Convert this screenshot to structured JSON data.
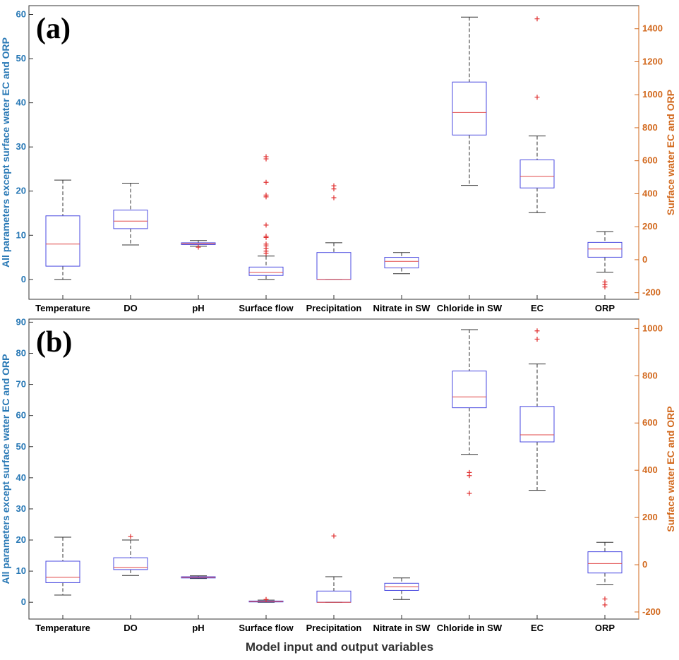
{
  "chart_data": [
    {
      "type": "boxplot",
      "panel_label": "(a)",
      "categories": [
        "Temperature",
        "DO",
        "pH",
        "Surface flow",
        "Precipitation",
        "Nitrate in SW",
        "Chloride in SW",
        "EC",
        "ORP"
      ],
      "left_axis": {
        "label": "All parameters except surface water EC and ORP",
        "ylim": [
          -4.5,
          62
        ],
        "ticks": [
          0,
          10,
          20,
          30,
          40,
          50,
          60
        ]
      },
      "right_axis": {
        "label": "Surface water EC and ORP",
        "ylim": [
          -240,
          1540
        ],
        "ticks": [
          -200,
          0,
          200,
          400,
          600,
          800,
          1000,
          1200,
          1400
        ]
      },
      "boxes": [
        {
          "name": "Temperature",
          "axis": "left",
          "min": 0,
          "q1": 3,
          "median": 8,
          "q3": 14.4,
          "max": 22.5,
          "outliers": []
        },
        {
          "name": "DO",
          "axis": "left",
          "min": 7.8,
          "q1": 11.5,
          "median": 13.2,
          "q3": 15.7,
          "max": 21.8,
          "outliers": []
        },
        {
          "name": "pH",
          "axis": "left",
          "min": 7.5,
          "q1": 7.9,
          "median": 8.1,
          "q3": 8.3,
          "max": 8.8,
          "outliers": [
            7.3
          ]
        },
        {
          "name": "Surface flow",
          "axis": "left",
          "min": 0,
          "q1": 0.9,
          "median": 1.6,
          "q3": 2.8,
          "max": 5.3,
          "outliers": [
            5.9,
            6.4,
            7.0,
            7.6,
            8.0,
            9.5,
            9.8,
            12.3,
            18.7,
            19.1,
            22.0,
            27.3,
            27.8
          ]
        },
        {
          "name": "Precipitation",
          "axis": "left",
          "min": 0,
          "q1": 0,
          "median": 0,
          "q3": 6.1,
          "max": 8.3,
          "outliers": [
            18.5,
            20.5,
            21.2
          ]
        },
        {
          "name": "Nitrate in SW",
          "axis": "left",
          "min": 1.3,
          "q1": 2.6,
          "median": 4.1,
          "q3": 5.0,
          "max": 6.1,
          "outliers": []
        },
        {
          "name": "Chloride in SW",
          "axis": "left",
          "min": 21.3,
          "q1": 32.7,
          "median": 37.8,
          "q3": 44.7,
          "max": 59.4,
          "outliers": []
        },
        {
          "name": "EC",
          "axis": "right",
          "min": 285,
          "q1": 435,
          "median": 505,
          "q3": 605,
          "max": 750,
          "outliers": [
            985,
            1460
          ]
        },
        {
          "name": "ORP",
          "axis": "right",
          "min": -75,
          "q1": 15,
          "median": 65,
          "q3": 105,
          "max": 170,
          "outliers": [
            -135,
            -150,
            -165
          ]
        }
      ]
    },
    {
      "type": "boxplot",
      "panel_label": "(b)",
      "categories": [
        "Temperature",
        "DO",
        "pH",
        "Surface flow",
        "Precipitation",
        "Nitrate in SW",
        "Chloride in SW",
        "EC",
        "ORP"
      ],
      "left_axis": {
        "label": "All parameters except surface water EC and ORP",
        "ylim": [
          -5.4,
          91
        ],
        "ticks": [
          0,
          10,
          20,
          30,
          40,
          50,
          60,
          70,
          80,
          90
        ]
      },
      "right_axis": {
        "label": "Surface water EC and ORP",
        "ylim": [
          -230,
          1040
        ],
        "ticks": [
          -200,
          0,
          200,
          400,
          600,
          800,
          1000
        ]
      },
      "boxes": [
        {
          "name": "Temperature",
          "axis": "left",
          "min": 2.3,
          "q1": 6.3,
          "median": 8.0,
          "q3": 13.2,
          "max": 20.9,
          "outliers": []
        },
        {
          "name": "DO",
          "axis": "left",
          "min": 8.6,
          "q1": 10.5,
          "median": 11.2,
          "q3": 14.3,
          "max": 20.0,
          "outliers": [
            21.1
          ]
        },
        {
          "name": "pH",
          "axis": "left",
          "min": 7.6,
          "q1": 7.8,
          "median": 8.0,
          "q3": 8.2,
          "max": 8.5,
          "outliers": []
        },
        {
          "name": "Surface flow",
          "axis": "left",
          "min": 0,
          "q1": 0.1,
          "median": 0.2,
          "q3": 0.4,
          "max": 0.7,
          "outliers": [
            0.9
          ]
        },
        {
          "name": "Precipitation",
          "axis": "left",
          "min": 0,
          "q1": 0,
          "median": 0,
          "q3": 3.6,
          "max": 8.2,
          "outliers": [
            21.3
          ]
        },
        {
          "name": "Nitrate in SW",
          "axis": "left",
          "min": 0.9,
          "q1": 3.8,
          "median": 5.0,
          "q3": 6.1,
          "max": 7.8,
          "outliers": []
        },
        {
          "name": "Chloride in SW",
          "axis": "left",
          "min": 47.5,
          "q1": 62.5,
          "median": 66.0,
          "q3": 74.3,
          "max": 87.6,
          "outliers": [
            40.7,
            41.7,
            35.0
          ]
        },
        {
          "name": "EC",
          "axis": "right",
          "min": 315,
          "q1": 520,
          "median": 550,
          "q3": 670,
          "max": 850,
          "outliers": [
            955,
            990
          ]
        },
        {
          "name": "ORP",
          "axis": "right",
          "min": -85,
          "q1": -35,
          "median": 5,
          "q3": 55,
          "max": 95,
          "outliers": [
            -145,
            -170
          ]
        }
      ]
    }
  ],
  "xlabel": "Model input and output variables",
  "colors": {
    "left_axis": "#2878B5",
    "right_axis": "#D2691E",
    "box": "#4A4AE0",
    "median": "#E04848",
    "whisker": "#333333",
    "outlier": "#E03030",
    "frame": "#333333"
  }
}
